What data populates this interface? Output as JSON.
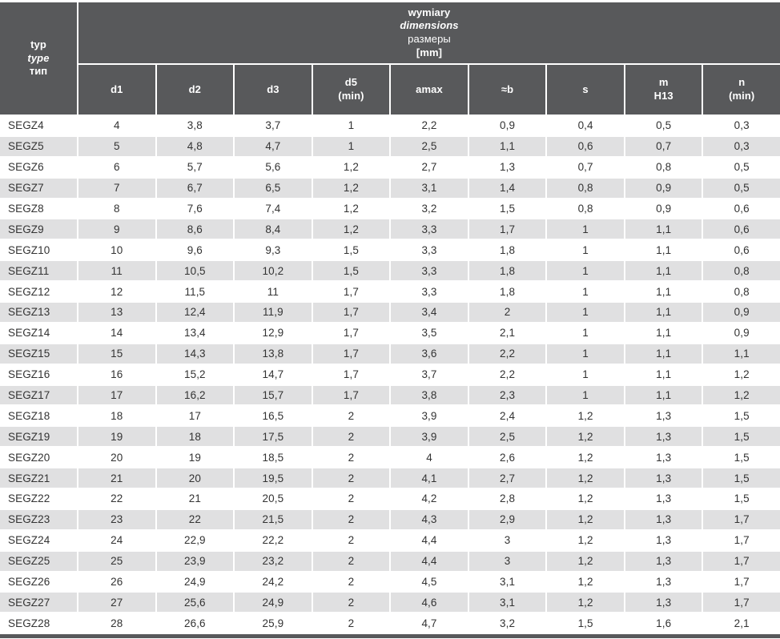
{
  "table": {
    "type_header": {
      "pl": "typ",
      "en": "type",
      "ru": "тип"
    },
    "dimensions_header": {
      "pl": "wymiary",
      "en": "dimensions",
      "ru": "размеры",
      "unit": "[mm]"
    },
    "columns": [
      {
        "line1": "d1"
      },
      {
        "line1": "d2"
      },
      {
        "line1": "d3"
      },
      {
        "line1": "d5",
        "line2": "(min)"
      },
      {
        "line1": "amax"
      },
      {
        "line1": "≈b"
      },
      {
        "line1": "s"
      },
      {
        "line1": "m",
        "line2": "H13"
      },
      {
        "line1": "n",
        "line2": "(min)"
      }
    ],
    "rows": [
      {
        "type": "SEGZ4",
        "values": [
          "4",
          "3,8",
          "3,7",
          "1",
          "2,2",
          "0,9",
          "0,4",
          "0,5",
          "0,3"
        ]
      },
      {
        "type": "SEGZ5",
        "values": [
          "5",
          "4,8",
          "4,7",
          "1",
          "2,5",
          "1,1",
          "0,6",
          "0,7",
          "0,3"
        ]
      },
      {
        "type": "SEGZ6",
        "values": [
          "6",
          "5,7",
          "5,6",
          "1,2",
          "2,7",
          "1,3",
          "0,7",
          "0,8",
          "0,5"
        ]
      },
      {
        "type": "SEGZ7",
        "values": [
          "7",
          "6,7",
          "6,5",
          "1,2",
          "3,1",
          "1,4",
          "0,8",
          "0,9",
          "0,5"
        ]
      },
      {
        "type": "SEGZ8",
        "values": [
          "8",
          "7,6",
          "7,4",
          "1,2",
          "3,2",
          "1,5",
          "0,8",
          "0,9",
          "0,6"
        ]
      },
      {
        "type": "SEGZ9",
        "values": [
          "9",
          "8,6",
          "8,4",
          "1,2",
          "3,3",
          "1,7",
          "1",
          "1,1",
          "0,6"
        ]
      },
      {
        "type": "SEGZ10",
        "values": [
          "10",
          "9,6",
          "9,3",
          "1,5",
          "3,3",
          "1,8",
          "1",
          "1,1",
          "0,6"
        ]
      },
      {
        "type": "SEGZ11",
        "values": [
          "11",
          "10,5",
          "10,2",
          "1,5",
          "3,3",
          "1,8",
          "1",
          "1,1",
          "0,8"
        ]
      },
      {
        "type": "SEGZ12",
        "values": [
          "12",
          "11,5",
          "11",
          "1,7",
          "3,3",
          "1,8",
          "1",
          "1,1",
          "0,8"
        ]
      },
      {
        "type": "SEGZ13",
        "values": [
          "13",
          "12,4",
          "11,9",
          "1,7",
          "3,4",
          "2",
          "1",
          "1,1",
          "0,9"
        ]
      },
      {
        "type": "SEGZ14",
        "values": [
          "14",
          "13,4",
          "12,9",
          "1,7",
          "3,5",
          "2,1",
          "1",
          "1,1",
          "0,9"
        ]
      },
      {
        "type": "SEGZ15",
        "values": [
          "15",
          "14,3",
          "13,8",
          "1,7",
          "3,6",
          "2,2",
          "1",
          "1,1",
          "1,1"
        ]
      },
      {
        "type": "SEGZ16",
        "values": [
          "16",
          "15,2",
          "14,7",
          "1,7",
          "3,7",
          "2,2",
          "1",
          "1,1",
          "1,2"
        ]
      },
      {
        "type": "SEGZ17",
        "values": [
          "17",
          "16,2",
          "15,7",
          "1,7",
          "3,8",
          "2,3",
          "1",
          "1,1",
          "1,2"
        ]
      },
      {
        "type": "SEGZ18",
        "values": [
          "18",
          "17",
          "16,5",
          "2",
          "3,9",
          "2,4",
          "1,2",
          "1,3",
          "1,5"
        ]
      },
      {
        "type": "SEGZ19",
        "values": [
          "19",
          "18",
          "17,5",
          "2",
          "3,9",
          "2,5",
          "1,2",
          "1,3",
          "1,5"
        ]
      },
      {
        "type": "SEGZ20",
        "values": [
          "20",
          "19",
          "18,5",
          "2",
          "4",
          "2,6",
          "1,2",
          "1,3",
          "1,5"
        ]
      },
      {
        "type": "SEGZ21",
        "values": [
          "21",
          "20",
          "19,5",
          "2",
          "4,1",
          "2,7",
          "1,2",
          "1,3",
          "1,5"
        ]
      },
      {
        "type": "SEGZ22",
        "values": [
          "22",
          "21",
          "20,5",
          "2",
          "4,2",
          "2,8",
          "1,2",
          "1,3",
          "1,5"
        ]
      },
      {
        "type": "SEGZ23",
        "values": [
          "23",
          "22",
          "21,5",
          "2",
          "4,3",
          "2,9",
          "1,2",
          "1,3",
          "1,7"
        ]
      },
      {
        "type": "SEGZ24",
        "values": [
          "24",
          "22,9",
          "22,2",
          "2",
          "4,4",
          "3",
          "1,2",
          "1,3",
          "1,7"
        ]
      },
      {
        "type": "SEGZ25",
        "values": [
          "25",
          "23,9",
          "23,2",
          "2",
          "4,4",
          "3",
          "1,2",
          "1,3",
          "1,7"
        ]
      },
      {
        "type": "SEGZ26",
        "values": [
          "26",
          "24,9",
          "24,2",
          "2",
          "4,5",
          "3,1",
          "1,2",
          "1,3",
          "1,7"
        ]
      },
      {
        "type": "SEGZ27",
        "values": [
          "27",
          "25,6",
          "24,9",
          "2",
          "4,6",
          "3,1",
          "1,2",
          "1,3",
          "1,7"
        ]
      },
      {
        "type": "SEGZ28",
        "values": [
          "28",
          "26,6",
          "25,9",
          "2",
          "4,7",
          "3,2",
          "1,5",
          "1,6",
          "2,1"
        ]
      }
    ]
  },
  "colors": {
    "header_bg": "#58595b",
    "header_text": "#ffffff",
    "row_stripe": "#e0e0e1",
    "body_text": "#333333"
  }
}
